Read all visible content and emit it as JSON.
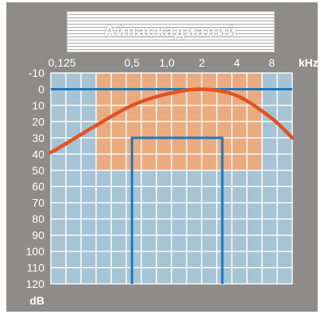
{
  "title": "Айпаскадиалий",
  "colors": {
    "frame": "#8d8c8b",
    "grid_cell": "#a7c4d5",
    "grid_line": "#ffffff",
    "speech_area": "#f0a878",
    "curve": "#e2531f",
    "line": "#1f78b8"
  },
  "chart_data": {
    "type": "line",
    "title": "Айпаскадиалий",
    "x_tick_labels": [
      "0,125",
      "0,5",
      "1,0",
      "2",
      "4",
      "8"
    ],
    "x_ticks_khz": [
      0.125,
      0.5,
      1.0,
      2,
      4,
      8
    ],
    "x_unit": "kHz",
    "x_scale": "log2",
    "xlim": [
      0.1,
      12
    ],
    "y_tick_labels": [
      "-10",
      "0",
      "10",
      "20",
      "30",
      "40",
      "50",
      "60",
      "70",
      "80",
      "90",
      "100",
      "110",
      "120"
    ],
    "y_ticks": [
      -10,
      0,
      10,
      20,
      30,
      40,
      50,
      60,
      70,
      80,
      90,
      100,
      110,
      120
    ],
    "y_unit": "dB",
    "ylim": [
      -10,
      120
    ],
    "y_inverted": true,
    "grid": true,
    "speech_area": {
      "x_range_khz": [
        0.25,
        6.5
      ],
      "y_range_db": [
        -10,
        50
      ]
    },
    "reference_line": {
      "y_db": 0,
      "x_range_khz": [
        0.1,
        12
      ]
    },
    "bracket": {
      "x_range_khz": [
        0.5,
        3.0
      ],
      "y_range_db": [
        30,
        120
      ]
    },
    "curve": {
      "x_khz": [
        0.1,
        0.125,
        0.25,
        0.5,
        1.0,
        2.0,
        4.0,
        8.0,
        12.0
      ],
      "y_db": [
        39,
        35,
        22,
        10,
        3,
        0,
        4,
        18,
        30
      ]
    }
  }
}
